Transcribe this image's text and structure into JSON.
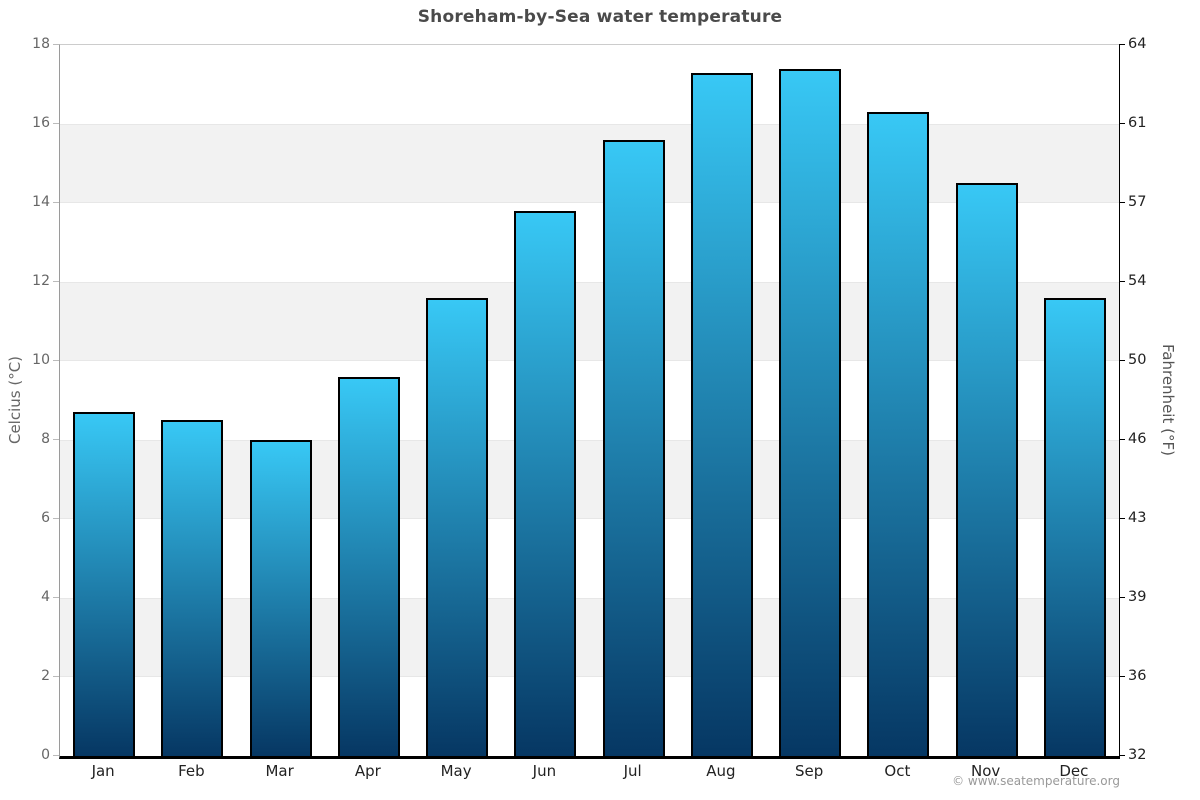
{
  "title": "Shoreham-by-Sea water temperature",
  "footer": "© www.seatemperature.org",
  "chart_data": {
    "type": "bar",
    "title": "Shoreham-by-Sea water temperature",
    "categories": [
      "Jan",
      "Feb",
      "Mar",
      "Apr",
      "May",
      "Jun",
      "Jul",
      "Aug",
      "Sep",
      "Oct",
      "Nov",
      "Dec"
    ],
    "values": [
      8.7,
      8.5,
      8.0,
      9.6,
      11.6,
      13.8,
      15.6,
      17.3,
      17.4,
      16.3,
      14.5,
      11.6
    ],
    "unit": "°C",
    "ylabel_left": "Celcius (°C)",
    "ylabel_right": "Fahrenheit (°F)",
    "yticks_celsius": [
      0,
      2,
      4,
      6,
      8,
      10,
      12,
      14,
      16,
      18
    ],
    "yticks_fahrenheit": [
      32,
      36,
      39,
      43,
      46,
      50,
      54,
      57,
      61,
      64
    ],
    "ylim": [
      0,
      18
    ],
    "legend": "none",
    "grid": "alternating horizontal gray bands every 2°C",
    "colors": {
      "bar_gradient_top": "#38c8f5",
      "bar_gradient_bottom": "#063763",
      "bar_border": "#000000",
      "band_fill": "#f2f2f2",
      "band_edge": "#e7e7e7",
      "title": "#4a4a4a",
      "tick_label_left": "#666666",
      "tick_label_right": "#222222",
      "footer": "#999999"
    }
  }
}
